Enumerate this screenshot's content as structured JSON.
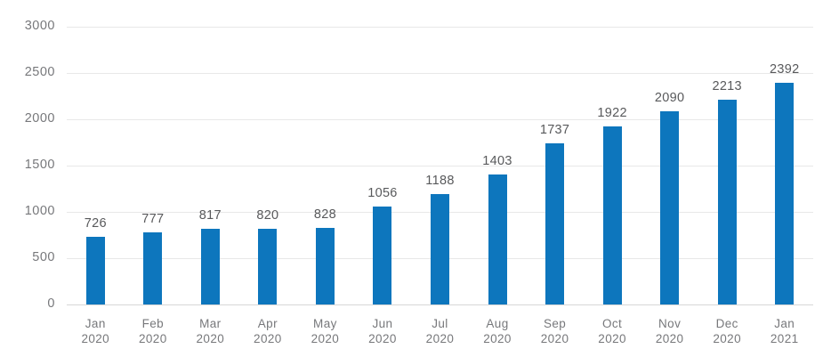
{
  "chart_data": {
    "type": "bar",
    "categories": [
      "Jan 2020",
      "Feb 2020",
      "Mar 2020",
      "Apr 2020",
      "May 2020",
      "Jun 2020",
      "Jul 2020",
      "Aug 2020",
      "Sep 2020",
      "Oct 2020",
      "Nov 2020",
      "Dec 2020",
      "Jan 2021"
    ],
    "values": [
      726,
      777,
      817,
      820,
      828,
      1056,
      1188,
      1403,
      1737,
      1922,
      2090,
      2213,
      2392
    ],
    "title": "",
    "xlabel": "",
    "ylabel": "",
    "ylim": [
      0,
      3000
    ],
    "yticks": [
      0,
      500,
      1000,
      1500,
      2000,
      2500,
      3000
    ],
    "grid": true,
    "legend": "none",
    "colors": {
      "bar": "#0d76bd",
      "value_label": "#58595b",
      "axis_label": "#77787b",
      "gridline": "#e8e8e8",
      "zero_line": "#d6d6d6",
      "background": "#ffffff"
    }
  }
}
